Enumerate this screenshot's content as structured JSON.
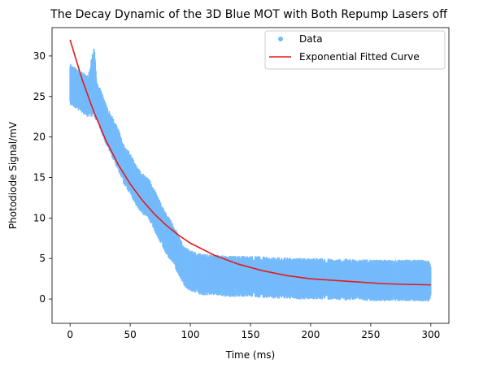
{
  "chart_data": {
    "type": "scatter",
    "title": "The Decay Dynamic of the 3D Blue MOT with Both Repump Lasers off",
    "xlabel": "Time (ms)",
    "ylabel": "Photodiode Signal/mV",
    "xlim": [
      -15,
      315
    ],
    "ylim": [
      -3,
      33.5
    ],
    "xticks": [
      0,
      50,
      100,
      150,
      200,
      250,
      300
    ],
    "yticks": [
      0,
      5,
      10,
      15,
      20,
      25,
      30
    ],
    "grid": false,
    "legend_position": "top-right",
    "series": [
      {
        "name": "Data",
        "kind": "scatter",
        "color": "#74bbfc",
        "x": [
          0,
          5,
          10,
          15,
          20,
          22,
          25,
          30,
          35,
          40,
          45,
          50,
          55,
          60,
          65,
          70,
          75,
          80,
          85,
          90,
          95,
          100,
          110,
          120,
          130,
          140,
          150,
          160,
          170,
          180,
          190,
          200,
          210,
          220,
          230,
          240,
          250,
          260,
          270,
          280,
          290,
          300
        ],
        "center": [
          26.5,
          26.0,
          25.5,
          25.0,
          27.0,
          24.5,
          23.5,
          21.5,
          20.0,
          18.5,
          16.5,
          15.5,
          14.0,
          13.0,
          12.5,
          11.0,
          9.5,
          8.0,
          7.0,
          5.5,
          4.0,
          3.5,
          3.0,
          3.0,
          2.8,
          2.8,
          2.8,
          2.7,
          2.6,
          2.6,
          2.5,
          2.5,
          2.5,
          2.4,
          2.4,
          2.4,
          2.3,
          2.3,
          2.3,
          2.3,
          2.3,
          2.2
        ],
        "spread": [
          2.5,
          2.5,
          2.5,
          2.5,
          4.5,
          2.5,
          2.5,
          2.5,
          2.5,
          2.5,
          2.5,
          2.5,
          2.5,
          2.5,
          2.5,
          2.5,
          2.5,
          2.5,
          2.5,
          2.5,
          2.5,
          2.5,
          2.5,
          2.5,
          2.5,
          2.5,
          2.5,
          2.5,
          2.5,
          2.5,
          2.5,
          2.5,
          2.5,
          2.5,
          2.5,
          2.5,
          2.5,
          2.5,
          2.5,
          2.5,
          2.5,
          2.5
        ]
      },
      {
        "name": "Exponential Fitted Curve",
        "kind": "line",
        "color": "#e41a1c",
        "x": [
          0,
          10,
          20,
          30,
          40,
          50,
          60,
          70,
          80,
          90,
          100,
          120,
          140,
          160,
          180,
          200,
          220,
          240,
          260,
          280,
          300
        ],
        "y": [
          32.0,
          27.1,
          23.0,
          19.5,
          16.6,
          14.2,
          12.2,
          10.5,
          9.1,
          7.9,
          6.9,
          5.4,
          4.3,
          3.5,
          2.9,
          2.5,
          2.3,
          2.1,
          1.9,
          1.8,
          1.75
        ]
      }
    ]
  }
}
